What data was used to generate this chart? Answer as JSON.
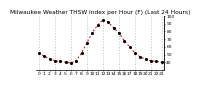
{
  "title": "Milwaukee Weather THSW Index per Hour (F) (Last 24 Hours)",
  "x_values": [
    0,
    1,
    2,
    3,
    4,
    5,
    6,
    7,
    8,
    9,
    10,
    11,
    12,
    13,
    14,
    15,
    16,
    17,
    18,
    19,
    20,
    21,
    22,
    23
  ],
  "y_values": [
    52,
    48,
    44,
    42,
    41,
    40,
    39,
    42,
    52,
    65,
    78,
    88,
    95,
    92,
    85,
    78,
    68,
    60,
    52,
    47,
    44,
    42,
    41,
    40
  ],
  "line_color": "#cc0000",
  "dot_color": "#000000",
  "background_color": "#ffffff",
  "grid_color": "#999999",
  "ylim_min": 30,
  "ylim_max": 100,
  "yticks": [
    40,
    50,
    60,
    70,
    80,
    90,
    100
  ],
  "grid_x_positions": [
    0,
    3,
    6,
    9,
    12,
    15,
    18,
    21,
    23
  ],
  "title_fontsize": 4.2,
  "tick_fontsize": 3.2
}
